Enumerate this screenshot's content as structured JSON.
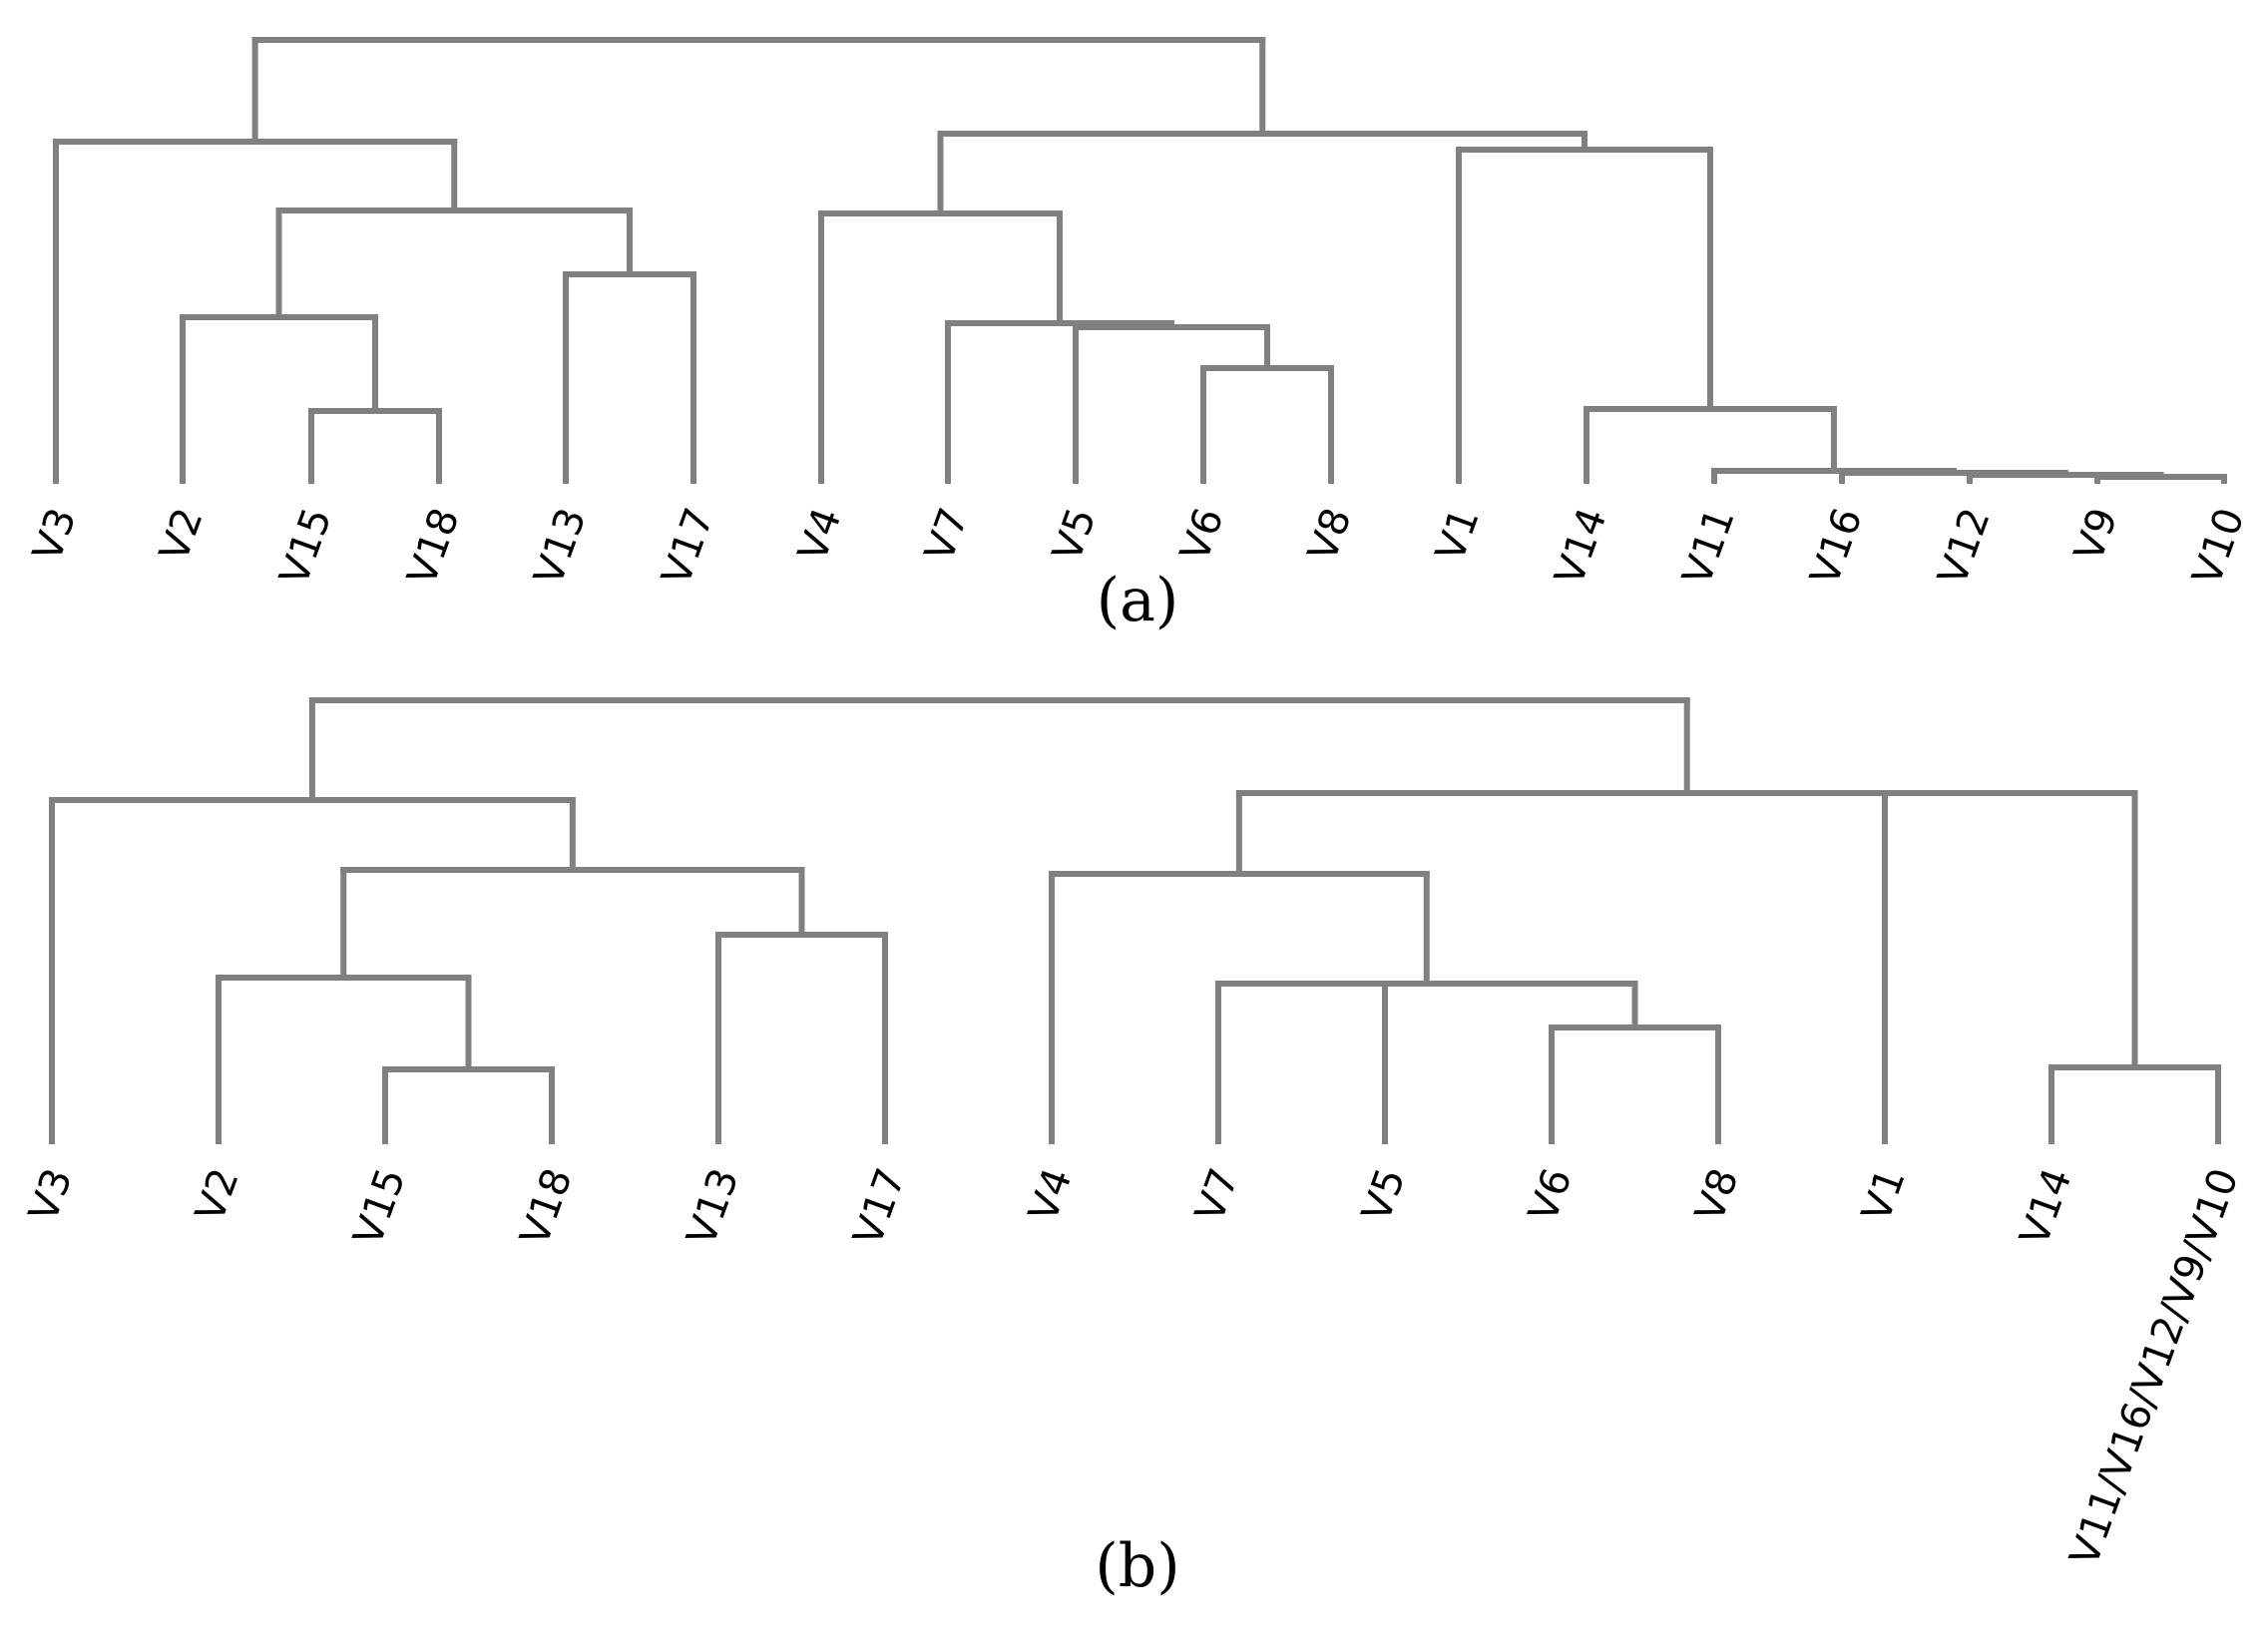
{
  "figure": {
    "line_color": "#808080",
    "text_color": "#000000",
    "background": "#ffffff"
  },
  "panel_a": {
    "caption": "(a)",
    "leaves": [
      "V3",
      "V2",
      "V15",
      "V18",
      "V13",
      "V17",
      "V4",
      "V7",
      "V5",
      "V6",
      "V8",
      "V1",
      "V14",
      "V11",
      "V16",
      "V12",
      "V9",
      "V10"
    ]
  },
  "panel_b": {
    "caption": "(b)",
    "leaves": [
      "V3",
      "V2",
      "V15",
      "V18",
      "V13",
      "V17",
      "V4",
      "V7",
      "V5",
      "V6",
      "V8",
      "V1",
      "V14",
      "V11/V16/V12/V9/V10"
    ]
  }
}
